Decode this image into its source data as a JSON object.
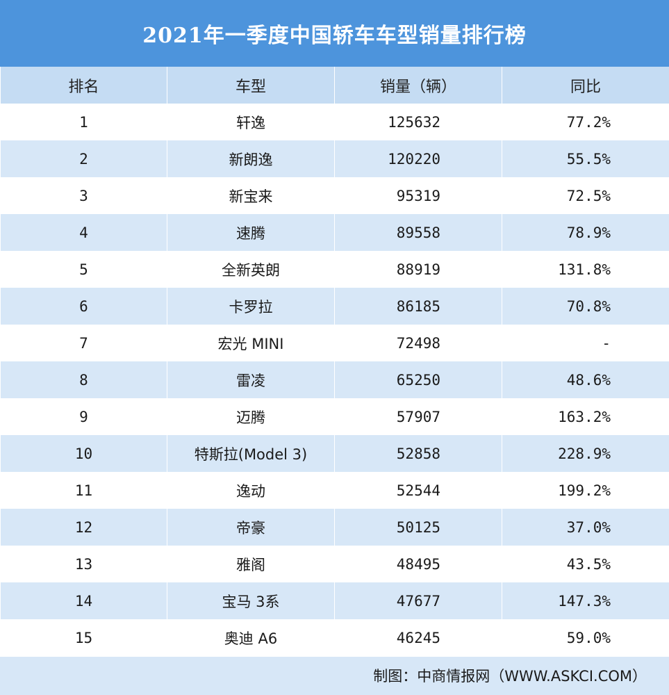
{
  "chart_data": {
    "type": "table",
    "title": "2021年一季度中国轿车车型销量排行榜",
    "columns": [
      "排名",
      "车型",
      "销量（辆）",
      "同比"
    ],
    "rows": [
      {
        "rank": "1",
        "model": "轩逸",
        "sales": "125632",
        "yoy": "77.2%"
      },
      {
        "rank": "2",
        "model": "新朗逸",
        "sales": "120220",
        "yoy": "55.5%"
      },
      {
        "rank": "3",
        "model": "新宝来",
        "sales": "95319",
        "yoy": "72.5%"
      },
      {
        "rank": "4",
        "model": "速腾",
        "sales": "89558",
        "yoy": "78.9%"
      },
      {
        "rank": "5",
        "model": "全新英朗",
        "sales": "88919",
        "yoy": "131.8%"
      },
      {
        "rank": "6",
        "model": "卡罗拉",
        "sales": "86185",
        "yoy": "70.8%"
      },
      {
        "rank": "7",
        "model": "宏光 MINI",
        "sales": "72498",
        "yoy": "-"
      },
      {
        "rank": "8",
        "model": "雷凌",
        "sales": "65250",
        "yoy": "48.6%"
      },
      {
        "rank": "9",
        "model": "迈腾",
        "sales": "57907",
        "yoy": "163.2%"
      },
      {
        "rank": "10",
        "model": "特斯拉(Model 3)",
        "sales": "52858",
        "yoy": "228.9%"
      },
      {
        "rank": "11",
        "model": "逸动",
        "sales": "52544",
        "yoy": "199.2%"
      },
      {
        "rank": "12",
        "model": "帝豪",
        "sales": "50125",
        "yoy": "37.0%"
      },
      {
        "rank": "13",
        "model": "雅阁",
        "sales": "48495",
        "yoy": "43.5%"
      },
      {
        "rank": "14",
        "model": "宝马 3系",
        "sales": "47677",
        "yoy": "147.3%"
      },
      {
        "rank": "15",
        "model": "奥迪 A6",
        "sales": "46245",
        "yoy": "59.0%"
      }
    ],
    "footer": "制图：中商情报网（WWW.ASKCI.COM）"
  },
  "colors": {
    "title_bg": "#4d94dc",
    "header_bg": "#c5dcf3",
    "stripe_bg": "#d7e7f7"
  }
}
